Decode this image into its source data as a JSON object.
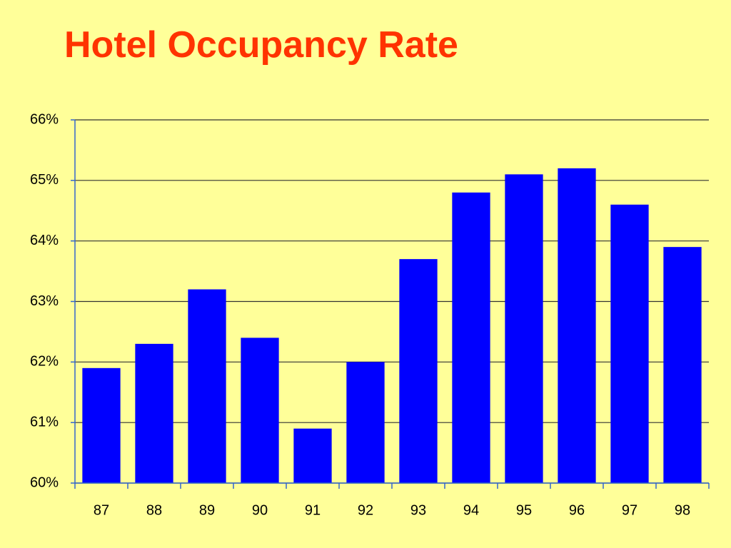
{
  "chart_data": {
    "type": "bar",
    "title": "Hotel Occupancy Rate",
    "categories": [
      "87",
      "88",
      "89",
      "90",
      "91",
      "92",
      "93",
      "94",
      "95",
      "96",
      "97",
      "98"
    ],
    "values": [
      61.9,
      62.3,
      63.2,
      62.4,
      60.9,
      62.0,
      63.7,
      64.8,
      65.1,
      65.2,
      64.6,
      63.9
    ],
    "color": "#0000ff",
    "ylim": [
      60,
      66
    ],
    "yticks": [
      {
        "value": 60,
        "label": "60%"
      },
      {
        "value": 61,
        "label": "61%"
      },
      {
        "value": 62,
        "label": "62%"
      },
      {
        "value": 63,
        "label": "63%"
      },
      {
        "value": 64,
        "label": "64%"
      },
      {
        "value": 65,
        "label": "65%"
      },
      {
        "value": 66,
        "label": "66%"
      }
    ],
    "grid": true
  }
}
